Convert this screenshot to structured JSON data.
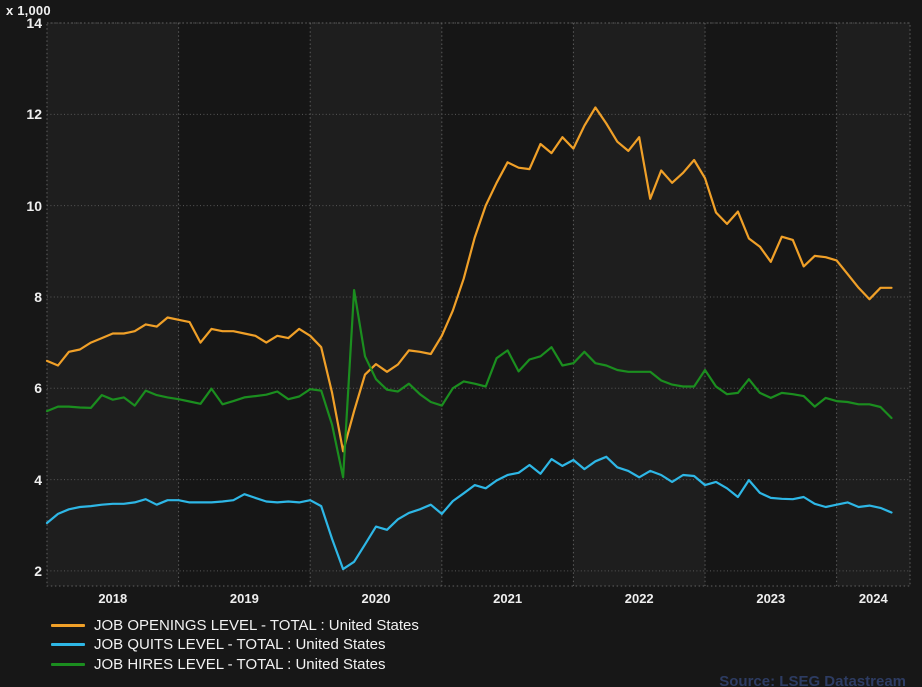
{
  "chart_data": {
    "type": "line",
    "title": "",
    "unit_label": "x 1,000",
    "xlabel": "",
    "ylabel": "",
    "ylim": [
      1.67,
      14
    ],
    "grid": "dotted",
    "legend_position": "bottom-left",
    "background_bands": "alternating-year-shading",
    "x_months_start": "2018-01",
    "x_months_end": "2024-06",
    "x_tick_labels": [
      "2018",
      "2019",
      "2020",
      "2021",
      "2022",
      "2023",
      "2024"
    ],
    "y_ticks": [
      14,
      12,
      10,
      8,
      6,
      4,
      2
    ],
    "y_tick_labels": [
      "14",
      "12",
      "10",
      "8",
      "6",
      "4",
      "2"
    ],
    "series": [
      {
        "name": "JOB OPENINGS LEVEL - TOTAL : United States",
        "color": "#f0a028",
        "values": [
          6.6,
          6.5,
          6.8,
          6.85,
          7.0,
          7.1,
          7.2,
          7.2,
          7.25,
          7.4,
          7.35,
          7.55,
          7.5,
          7.45,
          7.0,
          7.3,
          7.25,
          7.25,
          7.2,
          7.15,
          7.0,
          7.15,
          7.1,
          7.3,
          7.15,
          6.9,
          5.9,
          4.62,
          5.5,
          6.3,
          6.53,
          6.36,
          6.52,
          6.83,
          6.8,
          6.75,
          7.15,
          7.7,
          8.4,
          9.3,
          10.0,
          10.5,
          10.95,
          10.83,
          10.8,
          11.35,
          11.15,
          11.5,
          11.25,
          11.75,
          12.15,
          11.8,
          11.4,
          11.2,
          11.5,
          10.15,
          10.77,
          10.5,
          10.72,
          11.0,
          10.6,
          9.85,
          9.6,
          9.87,
          9.28,
          9.1,
          8.77,
          9.32,
          9.25,
          8.67,
          8.9,
          8.87,
          8.8,
          8.5,
          8.2,
          7.95,
          8.2,
          8.2
        ]
      },
      {
        "name": "JOB QUITS LEVEL - TOTAL : United States",
        "color": "#2eb7e6",
        "values": [
          3.05,
          3.25,
          3.35,
          3.4,
          3.42,
          3.45,
          3.47,
          3.47,
          3.5,
          3.57,
          3.45,
          3.55,
          3.55,
          3.5,
          3.5,
          3.5,
          3.52,
          3.55,
          3.68,
          3.6,
          3.52,
          3.5,
          3.52,
          3.5,
          3.55,
          3.42,
          2.7,
          2.04,
          2.2,
          2.58,
          2.97,
          2.9,
          3.13,
          3.27,
          3.35,
          3.45,
          3.25,
          3.53,
          3.7,
          3.88,
          3.81,
          3.98,
          4.1,
          4.15,
          4.32,
          4.13,
          4.45,
          4.3,
          4.43,
          4.23,
          4.4,
          4.5,
          4.27,
          4.19,
          4.05,
          4.19,
          4.1,
          3.95,
          4.1,
          4.08,
          3.88,
          3.95,
          3.81,
          3.62,
          3.99,
          3.71,
          3.6,
          3.58,
          3.57,
          3.62,
          3.47,
          3.4,
          3.45,
          3.5,
          3.4,
          3.43,
          3.38,
          3.28
        ]
      },
      {
        "name": "JOB HIRES LEVEL - TOTAL : United States",
        "color": "#1b8e1f",
        "values": [
          5.5,
          5.6,
          5.6,
          5.58,
          5.57,
          5.85,
          5.75,
          5.8,
          5.62,
          5.95,
          5.85,
          5.8,
          5.76,
          5.71,
          5.66,
          5.99,
          5.65,
          5.72,
          5.8,
          5.83,
          5.86,
          5.93,
          5.76,
          5.82,
          5.98,
          5.95,
          5.2,
          4.05,
          8.15,
          6.7,
          6.2,
          5.97,
          5.93,
          6.1,
          5.87,
          5.7,
          5.62,
          6.0,
          6.15,
          6.1,
          6.04,
          6.66,
          6.83,
          6.37,
          6.63,
          6.7,
          6.9,
          6.5,
          6.55,
          6.8,
          6.55,
          6.5,
          6.4,
          6.36,
          6.36,
          6.36,
          6.17,
          6.08,
          6.04,
          6.04,
          6.4,
          6.04,
          5.87,
          5.9,
          6.2,
          5.9,
          5.79,
          5.9,
          5.87,
          5.83,
          5.6,
          5.79,
          5.72,
          5.7,
          5.65,
          5.65,
          5.59,
          5.35
        ]
      }
    ],
    "source": "Source: LSEG Datastream"
  }
}
